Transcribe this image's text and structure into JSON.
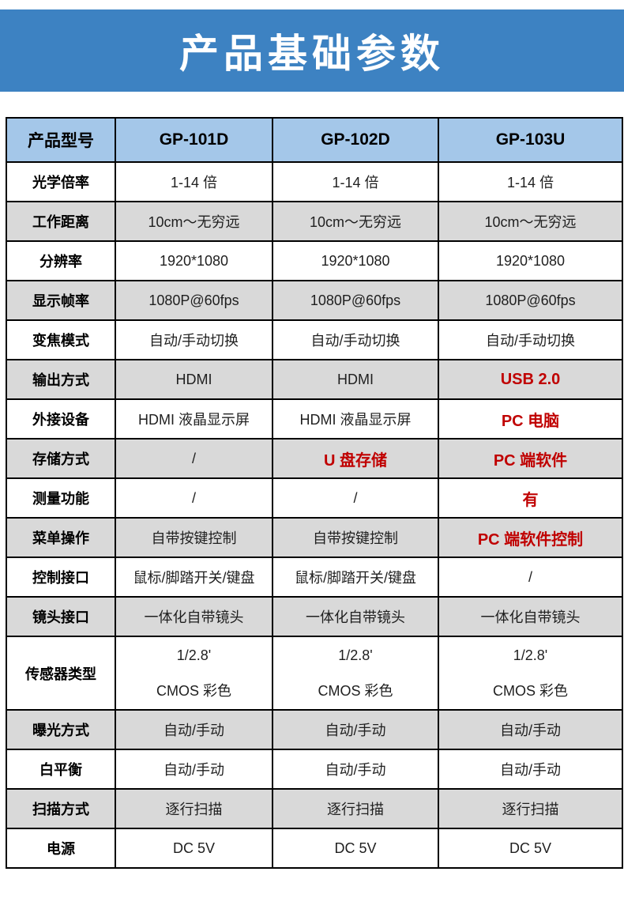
{
  "banner": {
    "title": "产品基础参数",
    "bg_color": "#3d82c2",
    "text_color": "#ffffff"
  },
  "table": {
    "colors": {
      "header_bg": "#a4c7e9",
      "row_white": "#ffffff",
      "row_gray": "#d9d9d9",
      "highlight_red": "#c00000",
      "border": "#000000"
    },
    "header": {
      "cells": [
        "产品型号",
        "GP-101D",
        "GP-102D",
        "GP-103U"
      ]
    },
    "rows": [
      {
        "label": "光学倍率",
        "cells": [
          {
            "text": "1-14 倍"
          },
          {
            "text": "1-14 倍"
          },
          {
            "text": "1-14 倍"
          }
        ]
      },
      {
        "label": "工作距离",
        "cells": [
          {
            "text": "10cm～无穷远"
          },
          {
            "text": "10cm～无穷远"
          },
          {
            "text": "10cm～无穷远"
          }
        ]
      },
      {
        "label": "分辨率",
        "cells": [
          {
            "text": "1920*1080"
          },
          {
            "text": "1920*1080"
          },
          {
            "text": "1920*1080"
          }
        ]
      },
      {
        "label": "显示帧率",
        "cells": [
          {
            "text": "1080P@60fps"
          },
          {
            "text": "1080P@60fps"
          },
          {
            "text": "1080P@60fps"
          }
        ]
      },
      {
        "label": "变焦模式",
        "cells": [
          {
            "text": "自动/手动切换"
          },
          {
            "text": "自动/手动切换"
          },
          {
            "text": "自动/手动切换"
          }
        ]
      },
      {
        "label": "输出方式",
        "cells": [
          {
            "text": "HDMI"
          },
          {
            "text": "HDMI"
          },
          {
            "text": "USB 2.0",
            "red": true
          }
        ]
      },
      {
        "label": "外接设备",
        "cells": [
          {
            "text": "HDMI 液晶显示屏"
          },
          {
            "text": "HDMI 液晶显示屏"
          },
          {
            "text": "PC 电脑",
            "red": true
          }
        ]
      },
      {
        "label": "存储方式",
        "cells": [
          {
            "text": "/"
          },
          {
            "text": "U 盘存储",
            "red": true
          },
          {
            "text": "PC 端软件",
            "red": true
          }
        ]
      },
      {
        "label": "测量功能",
        "cells": [
          {
            "text": "/"
          },
          {
            "text": "/"
          },
          {
            "text": "有",
            "red": true
          }
        ]
      },
      {
        "label": "菜单操作",
        "cells": [
          {
            "text": "自带按键控制"
          },
          {
            "text": "自带按键控制"
          },
          {
            "text": "PC 端软件控制",
            "red": true
          }
        ]
      },
      {
        "label": "控制接口",
        "cells": [
          {
            "text": "鼠标/脚踏开关/键盘"
          },
          {
            "text": "鼠标/脚踏开关/键盘"
          },
          {
            "text": "/"
          }
        ]
      },
      {
        "label": "镜头接口",
        "cells": [
          {
            "text": "一体化自带镜头"
          },
          {
            "text": "一体化自带镜头"
          },
          {
            "text": "一体化自带镜头"
          }
        ]
      },
      {
        "label": "传感器类型",
        "tall": true,
        "cells": [
          {
            "text": "1/2.8ʹ\nCMOS 彩色"
          },
          {
            "text": "1/2.8ʹ\nCMOS 彩色"
          },
          {
            "text": "1/2.8ʹ\nCMOS 彩色"
          }
        ]
      },
      {
        "label": "曝光方式",
        "cells": [
          {
            "text": "自动/手动"
          },
          {
            "text": "自动/手动"
          },
          {
            "text": "自动/手动"
          }
        ]
      },
      {
        "label": "白平衡",
        "cells": [
          {
            "text": "自动/手动"
          },
          {
            "text": "自动/手动"
          },
          {
            "text": "自动/手动"
          }
        ]
      },
      {
        "label": "扫描方式",
        "cells": [
          {
            "text": "逐行扫描"
          },
          {
            "text": "逐行扫描"
          },
          {
            "text": "逐行扫描"
          }
        ]
      },
      {
        "label": "电源",
        "cells": [
          {
            "text": "DC 5V"
          },
          {
            "text": "DC 5V"
          },
          {
            "text": "DC 5V"
          }
        ]
      }
    ]
  }
}
